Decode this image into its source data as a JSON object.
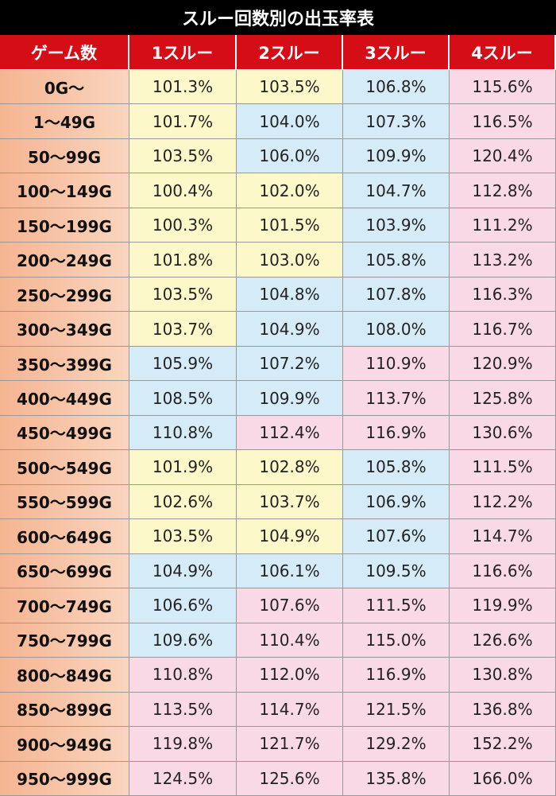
{
  "title": "スルー回数別の出玉率表",
  "table": {
    "header": [
      "ゲーム数",
      "1スルー",
      "2スルー",
      "3スルー",
      "4スルー"
    ],
    "header_color": "#d50d16",
    "rows": [
      [
        "0G〜",
        "101.3%",
        "103.5%",
        "106.8%",
        "115.6%"
      ],
      [
        "1〜49G",
        "101.7%",
        "104.0%",
        "107.3%",
        "116.5%"
      ],
      [
        "50〜99G",
        "103.5%",
        "106.0%",
        "109.9%",
        "120.4%"
      ],
      [
        "100〜149G",
        "100.4%",
        "102.0%",
        "104.7%",
        "112.8%"
      ],
      [
        "150〜199G",
        "100.3%",
        "101.5%",
        "103.9%",
        "111.2%"
      ],
      [
        "200〜249G",
        "101.8%",
        "103.0%",
        "105.8%",
        "113.2%"
      ],
      [
        "250〜299G",
        "103.5%",
        "104.8%",
        "107.8%",
        "116.3%"
      ],
      [
        "300〜349G",
        "103.7%",
        "104.9%",
        "108.0%",
        "116.7%"
      ],
      [
        "350〜399G",
        "105.9%",
        "107.2%",
        "110.9%",
        "120.9%"
      ],
      [
        "400〜449G",
        "108.5%",
        "109.9%",
        "113.7%",
        "125.8%"
      ],
      [
        "450〜499G",
        "110.8%",
        "112.4%",
        "116.9%",
        "130.6%"
      ],
      [
        "500〜549G",
        "101.9%",
        "102.8%",
        "105.8%",
        "111.5%"
      ],
      [
        "550〜599G",
        "102.6%",
        "103.7%",
        "106.9%",
        "112.2%"
      ],
      [
        "600〜649G",
        "103.5%",
        "104.9%",
        "107.6%",
        "114.7%"
      ],
      [
        "650〜699G",
        "104.9%",
        "106.1%",
        "109.5%",
        "116.6%"
      ],
      [
        "700〜749G",
        "106.6%",
        "107.6%",
        "111.5%",
        "119.9%"
      ],
      [
        "750〜799G",
        "109.6%",
        "110.4%",
        "115.0%",
        "126.6%"
      ],
      [
        "800〜849G",
        "110.8%",
        "112.0%",
        "116.9%",
        "130.8%"
      ],
      [
        "850〜899G",
        "113.5%",
        "114.7%",
        "121.5%",
        "136.8%"
      ],
      [
        "900〜949G",
        "119.8%",
        "121.7%",
        "129.2%",
        "152.2%"
      ],
      [
        "950〜999G",
        "124.5%",
        "125.6%",
        "135.8%",
        "166.0%"
      ]
    ],
    "cell_colors": [
      [
        "#fdf8c9",
        "#fdf8c9",
        "#d6ebf8",
        "#fad9e6"
      ],
      [
        "#fdf8c9",
        "#d6ebf8",
        "#d6ebf8",
        "#fad9e6"
      ],
      [
        "#fdf8c9",
        "#d6ebf8",
        "#d6ebf8",
        "#fad9e6"
      ],
      [
        "#fdf8c9",
        "#fdf8c9",
        "#d6ebf8",
        "#fad9e6"
      ],
      [
        "#fdf8c9",
        "#fdf8c9",
        "#d6ebf8",
        "#fad9e6"
      ],
      [
        "#fdf8c9",
        "#fdf8c9",
        "#d6ebf8",
        "#fad9e6"
      ],
      [
        "#fdf8c9",
        "#d6ebf8",
        "#d6ebf8",
        "#fad9e6"
      ],
      [
        "#fdf8c9",
        "#d6ebf8",
        "#d6ebf8",
        "#fad9e6"
      ],
      [
        "#d6ebf8",
        "#d6ebf8",
        "#fad9e6",
        "#fad9e6"
      ],
      [
        "#d6ebf8",
        "#d6ebf8",
        "#fad9e6",
        "#fad9e6"
      ],
      [
        "#d6ebf8",
        "#fad9e6",
        "#fad9e6",
        "#fad9e6"
      ],
      [
        "#fdf8c9",
        "#fdf8c9",
        "#d6ebf8",
        "#fad9e6"
      ],
      [
        "#fdf8c9",
        "#fdf8c9",
        "#d6ebf8",
        "#fad9e6"
      ],
      [
        "#fdf8c9",
        "#fdf8c9",
        "#d6ebf8",
        "#fad9e6"
      ],
      [
        "#d6ebf8",
        "#d6ebf8",
        "#d6ebf8",
        "#fad9e6"
      ],
      [
        "#d6ebf8",
        "#fad9e6",
        "#fad9e6",
        "#fad9e6"
      ],
      [
        "#d6ebf8",
        "#fad9e6",
        "#fad9e6",
        "#fad9e6"
      ],
      [
        "#fad9e6",
        "#fad9e6",
        "#fad9e6",
        "#fad9e6"
      ],
      [
        "#fad9e6",
        "#fad9e6",
        "#fad9e6",
        "#fad9e6"
      ],
      [
        "#fad9e6",
        "#fad9e6",
        "#fad9e6",
        "#fad9e6"
      ],
      [
        "#fad9e6",
        "#fad9e6",
        "#fad9e6",
        "#fad9e6"
      ]
    ]
  }
}
